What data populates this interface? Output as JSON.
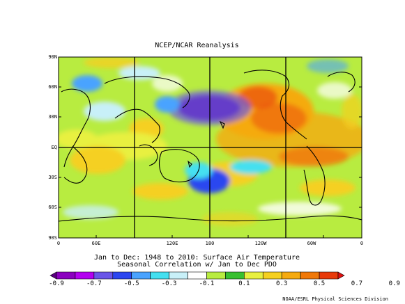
{
  "title": "NCEP/NCAR Reanalysis",
  "lat_labels": [
    "90N",
    "60N",
    "30N",
    "EQ",
    "30S",
    "60S",
    "90S"
  ],
  "lon_labels": [
    "0",
    "60E",
    "120E",
    "180",
    "120W",
    "60W",
    "0"
  ],
  "caption_line1": "Jan to Dec: 1948 to 2010: Surface Air Temperature",
  "caption_line2": "Seasonal Correlation w/ Jan to Dec PDO",
  "colorbar": {
    "ticks": [
      "-0.9",
      "-0.7",
      "-0.5",
      "-0.3",
      "-0.1",
      "0.1",
      "0.3",
      "0.5",
      "0.7",
      "0.9"
    ],
    "colors": [
      "#5a007f",
      "#8b00bf",
      "#b300f0",
      "#6a55e8",
      "#2c46f0",
      "#4aa3ff",
      "#44e0f0",
      "#c8f0f8",
      "#ffffff",
      "#b8ec40",
      "#38c030",
      "#e8f040",
      "#f5d020",
      "#f5aa10",
      "#f07808",
      "#e83a0a",
      "#e01010"
    ]
  },
  "credit": "NOAA/ESRL Physical Sciences Division"
}
